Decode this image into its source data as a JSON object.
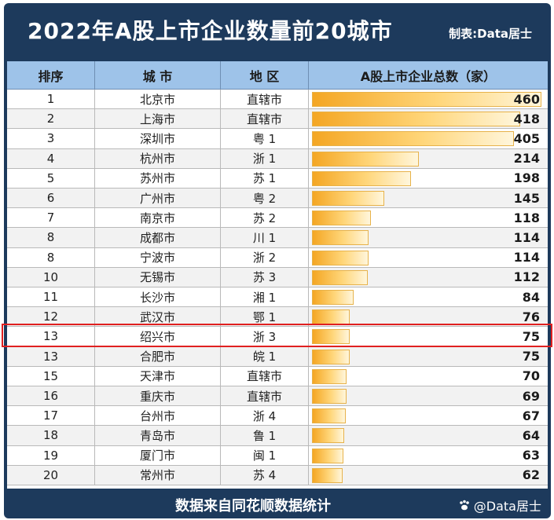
{
  "title": "2022年A股上市企业数量前20城市",
  "maker": "制表:Data居士",
  "headers": {
    "rank": "排序",
    "city": "城 市",
    "region": "地 区",
    "count": "A股上市企业总数（家）"
  },
  "footer": {
    "source": "数据来自同花顺数据统计",
    "watermark": "@Data居士"
  },
  "colors": {
    "header_bg": "#1d3a5c",
    "column_header": "#9ec3e9",
    "bar": "#f4a623",
    "highlight": "#e02020"
  },
  "highlight_rank_index": 12,
  "chart_data": {
    "type": "bar",
    "title": "2022年A股上市企业数量前20城市",
    "xlabel": "",
    "ylabel": "A股上市企业总数（家）",
    "ylim": [
      0,
      460
    ],
    "rows": [
      {
        "rank": "1",
        "city": "北京市",
        "region": "直辖市",
        "value": 460
      },
      {
        "rank": "2",
        "city": "上海市",
        "region": "直辖市",
        "value": 418
      },
      {
        "rank": "3",
        "city": "深圳市",
        "region": "粤 1",
        "value": 405
      },
      {
        "rank": "4",
        "city": "杭州市",
        "region": "浙 1",
        "value": 214
      },
      {
        "rank": "5",
        "city": "苏州市",
        "region": "苏 1",
        "value": 198
      },
      {
        "rank": "6",
        "city": "广州市",
        "region": "粤 2",
        "value": 145
      },
      {
        "rank": "7",
        "city": "南京市",
        "region": "苏 2",
        "value": 118
      },
      {
        "rank": "8",
        "city": "成都市",
        "region": "川 1",
        "value": 114
      },
      {
        "rank": "8",
        "city": "宁波市",
        "region": "浙 2",
        "value": 114
      },
      {
        "rank": "10",
        "city": "无锡市",
        "region": "苏 3",
        "value": 112
      },
      {
        "rank": "11",
        "city": "长沙市",
        "region": "湘 1",
        "value": 84
      },
      {
        "rank": "12",
        "city": "武汉市",
        "region": "鄂 1",
        "value": 76
      },
      {
        "rank": "13",
        "city": "绍兴市",
        "region": "浙 3",
        "value": 75
      },
      {
        "rank": "13",
        "city": "合肥市",
        "region": "皖 1",
        "value": 75
      },
      {
        "rank": "15",
        "city": "天津市",
        "region": "直辖市",
        "value": 70
      },
      {
        "rank": "16",
        "city": "重庆市",
        "region": "直辖市",
        "value": 69
      },
      {
        "rank": "17",
        "city": "台州市",
        "region": "浙 4",
        "value": 67
      },
      {
        "rank": "18",
        "city": "青岛市",
        "region": "鲁 1",
        "value": 64
      },
      {
        "rank": "19",
        "city": "厦门市",
        "region": "闽 1",
        "value": 63
      },
      {
        "rank": "20",
        "city": "常州市",
        "region": "苏 4",
        "value": 62
      }
    ]
  }
}
